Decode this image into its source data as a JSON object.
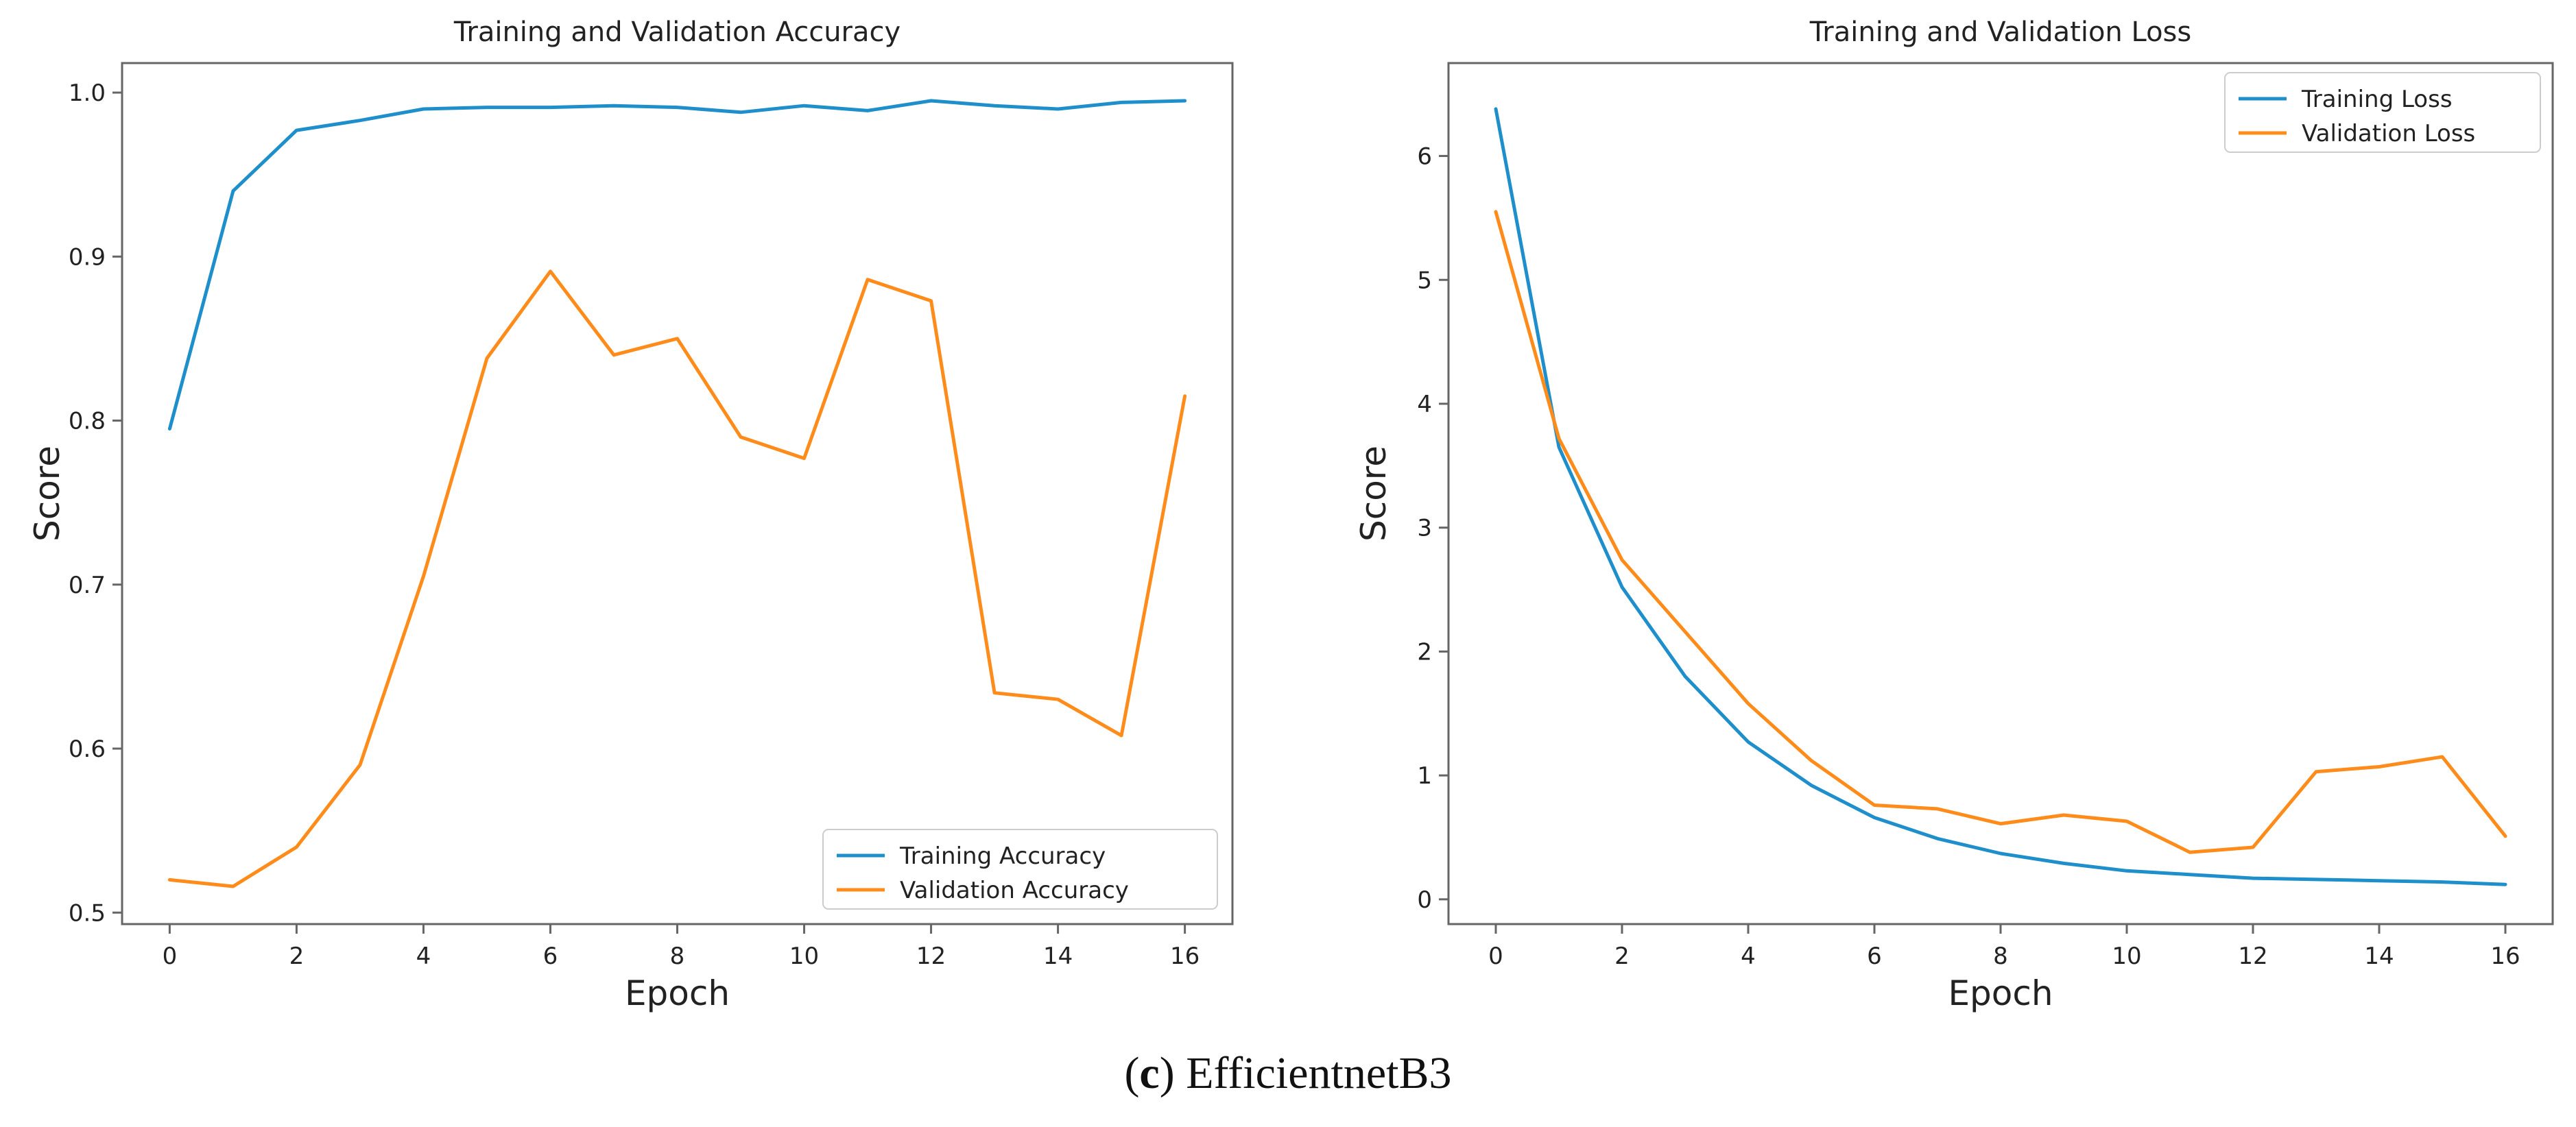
{
  "figure": {
    "caption": {
      "open": "(",
      "letter": "c",
      "close": ")",
      "text": " EfficientnetB3"
    },
    "colors": {
      "training": "#1f8fcb",
      "validation": "#ff8c1a",
      "axis": "#666666",
      "text": "#222222"
    }
  },
  "chart_data": [
    {
      "type": "line",
      "title": "Training and Validation Accuracy",
      "xlabel": "Epoch",
      "ylabel": "Score",
      "xlim": [
        -0.75,
        16.75
      ],
      "ylim": [
        0.493,
        1.018
      ],
      "xticks": [
        0,
        2,
        4,
        6,
        8,
        10,
        12,
        14,
        16
      ],
      "xtick_labels": [
        "0",
        "2",
        "4",
        "6",
        "8",
        "10",
        "12",
        "14",
        "16"
      ],
      "yticks": [
        0.5,
        0.6,
        0.7,
        0.8,
        0.9,
        1.0
      ],
      "ytick_labels": [
        "0.5",
        "0.6",
        "0.7",
        "0.8",
        "0.9",
        "1.0"
      ],
      "grid": false,
      "legend_position": "lower-right",
      "x": [
        0,
        1,
        2,
        3,
        4,
        5,
        6,
        7,
        8,
        9,
        10,
        11,
        12,
        13,
        14,
        15,
        16
      ],
      "series": [
        {
          "name": "Training Accuracy",
          "color_key": "training",
          "values": [
            0.795,
            0.94,
            0.977,
            0.983,
            0.99,
            0.991,
            0.991,
            0.992,
            0.991,
            0.988,
            0.992,
            0.989,
            0.995,
            0.992,
            0.99,
            0.994,
            0.995
          ]
        },
        {
          "name": "Validation Accuracy",
          "color_key": "validation",
          "values": [
            0.52,
            0.516,
            0.54,
            0.59,
            0.705,
            0.838,
            0.891,
            0.84,
            0.85,
            0.79,
            0.777,
            0.886,
            0.873,
            0.634,
            0.63,
            0.608,
            0.815
          ]
        }
      ]
    },
    {
      "type": "line",
      "title": "Training and Validation Loss",
      "xlabel": "Epoch",
      "ylabel": "Score",
      "xlim": [
        -0.75,
        16.75
      ],
      "ylim": [
        -0.2,
        6.75
      ],
      "xticks": [
        0,
        2,
        4,
        6,
        8,
        10,
        12,
        14,
        16
      ],
      "xtick_labels": [
        "0",
        "2",
        "4",
        "6",
        "8",
        "10",
        "12",
        "14",
        "16"
      ],
      "yticks": [
        0,
        1,
        2,
        3,
        4,
        5,
        6
      ],
      "ytick_labels": [
        "0",
        "1",
        "2",
        "3",
        "4",
        "5",
        "6"
      ],
      "grid": false,
      "legend_position": "top-right",
      "x": [
        0,
        1,
        2,
        3,
        4,
        5,
        6,
        7,
        8,
        9,
        10,
        11,
        12,
        13,
        14,
        15,
        16
      ],
      "series": [
        {
          "name": "Training Loss",
          "color_key": "training",
          "values": [
            6.38,
            3.65,
            2.52,
            1.8,
            1.27,
            0.92,
            0.66,
            0.49,
            0.37,
            0.29,
            0.23,
            0.2,
            0.17,
            0.16,
            0.15,
            0.14,
            0.12
          ]
        },
        {
          "name": "Validation Loss",
          "color_key": "validation",
          "values": [
            5.55,
            3.72,
            2.74,
            2.16,
            1.58,
            1.12,
            0.76,
            0.73,
            0.61,
            0.68,
            0.63,
            0.38,
            0.42,
            1.03,
            1.07,
            1.15,
            0.51
          ]
        }
      ]
    }
  ]
}
